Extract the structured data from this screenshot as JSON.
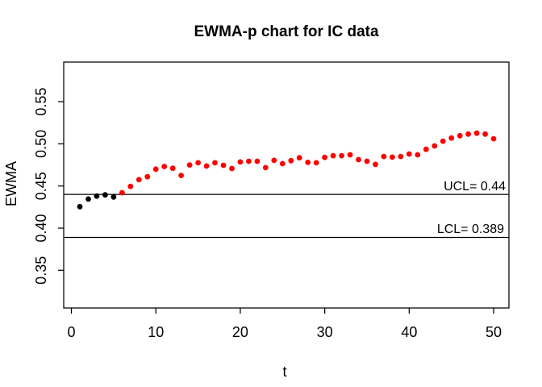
{
  "chart_data": {
    "type": "scatter",
    "title": "EWMA-p chart for IC data",
    "xlabel": "t",
    "ylabel": "EWMA",
    "x_ticks": [
      0,
      10,
      20,
      30,
      40,
      50
    ],
    "y_ticks": [
      0.35,
      0.4,
      0.45,
      0.5,
      0.55
    ],
    "xlim": [
      -0.91,
      51.81
    ],
    "ylim": [
      0.3053,
      0.597
    ],
    "grid": false,
    "legend": "none",
    "background_color": "#ffffff",
    "axis_color": "#000000",
    "control_limits": [
      {
        "name": "UCL",
        "label": "UCL= 0.44",
        "value": 0.44,
        "color": "#000000"
      },
      {
        "name": "LCL",
        "label": "LCL= 0.389",
        "value": 0.389,
        "color": "#000000"
      }
    ],
    "series": [
      {
        "name": "ewma-initial-black",
        "color": "#000000",
        "x": [
          1,
          2,
          3,
          4,
          5
        ],
        "y": [
          0.4255,
          0.4345,
          0.438,
          0.4395,
          0.437
        ]
      },
      {
        "name": "ewma-signal-red",
        "color": "#ff0000",
        "x": [
          6,
          7,
          8,
          9,
          10,
          11,
          12,
          13,
          14,
          15,
          16,
          17,
          18,
          19,
          20,
          21,
          22,
          23,
          24,
          25,
          26,
          27,
          28,
          29,
          30,
          31,
          32,
          33,
          34,
          35,
          36,
          37,
          38,
          39,
          40,
          41,
          42,
          43,
          44,
          45,
          46,
          47,
          48,
          49,
          50
        ],
        "y": [
          0.442,
          0.4495,
          0.4575,
          0.461,
          0.47,
          0.4731,
          0.471,
          0.4625,
          0.475,
          0.4775,
          0.4737,
          0.4775,
          0.4746,
          0.4708,
          0.4785,
          0.4794,
          0.4794,
          0.4718,
          0.4804,
          0.4765,
          0.48,
          0.4835,
          0.478,
          0.4775,
          0.484,
          0.486,
          0.486,
          0.487,
          0.4813,
          0.4794,
          0.4756,
          0.485,
          0.4842,
          0.485,
          0.488,
          0.487,
          0.4935,
          0.4975,
          0.5032,
          0.5069,
          0.5097,
          0.5116,
          0.5126,
          0.5116,
          0.506
        ]
      }
    ]
  }
}
